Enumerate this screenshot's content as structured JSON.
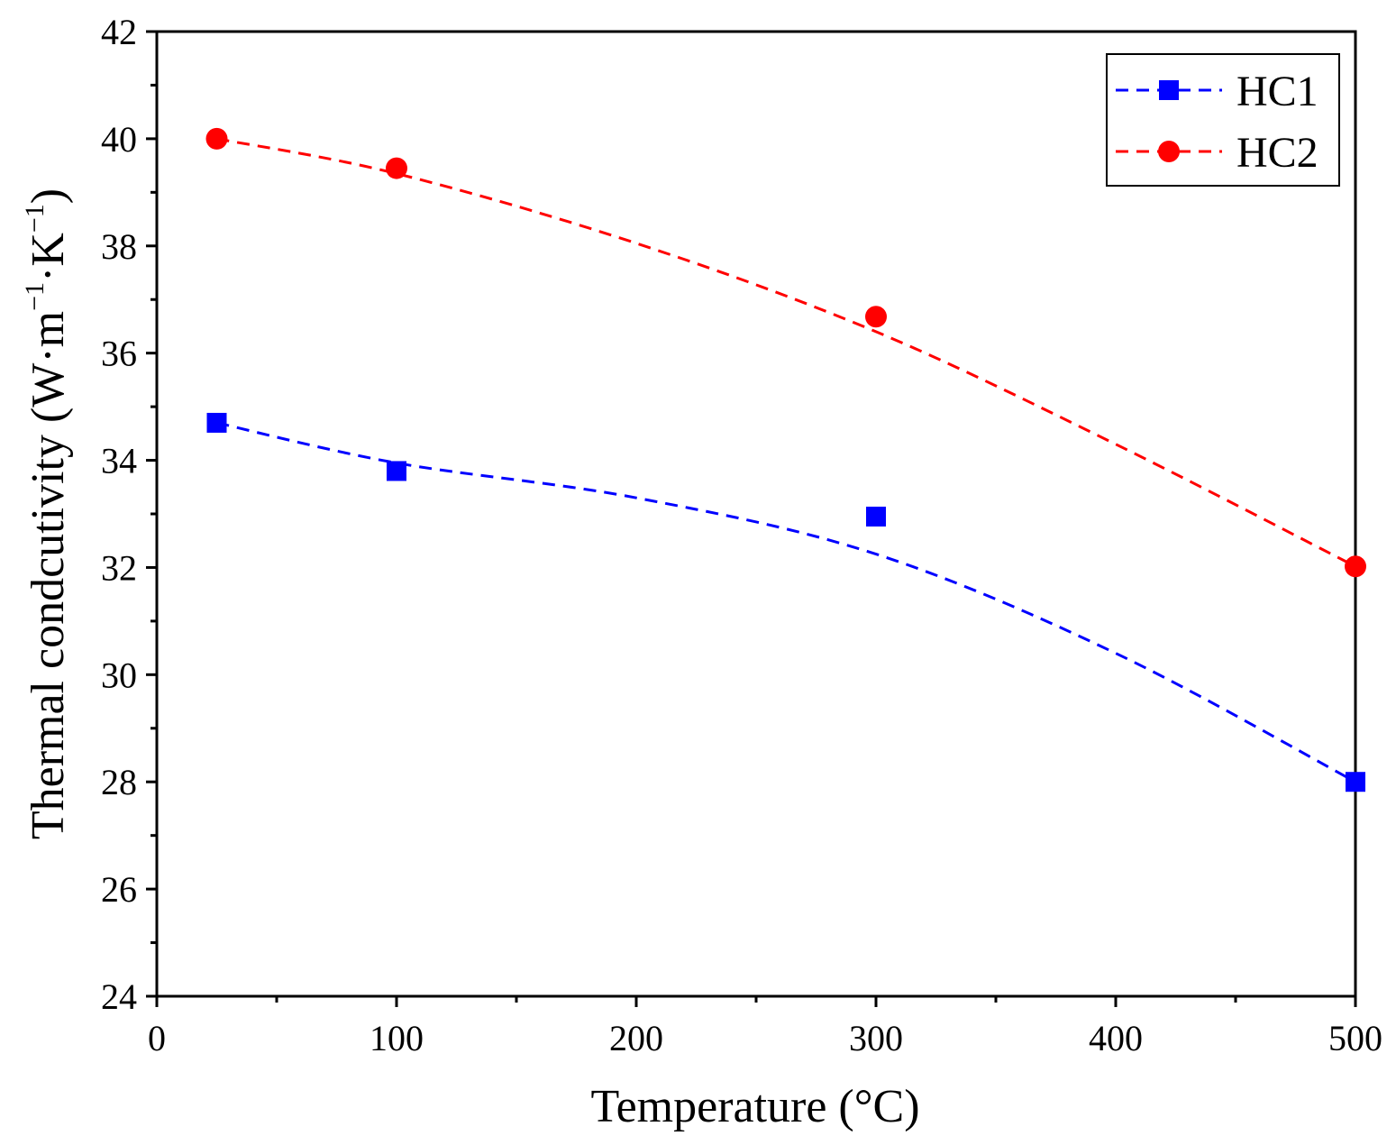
{
  "chart_data": {
    "type": "line",
    "title": "",
    "xlabel": "Temperature (°C)",
    "ylabel_parts": [
      "Thermal condcutivity (W·m",
      "−1",
      "·K",
      "−1",
      ")"
    ],
    "xlim": [
      0,
      500
    ],
    "ylim": [
      24,
      42
    ],
    "x_major_ticks": [
      0,
      100,
      200,
      300,
      400,
      500
    ],
    "x_minor_ticks": [
      50,
      150,
      250,
      350,
      450
    ],
    "y_major_ticks": [
      24,
      26,
      28,
      30,
      32,
      34,
      36,
      38,
      40,
      42
    ],
    "y_minor_ticks": [
      25,
      27,
      29,
      31,
      33,
      35,
      37,
      39,
      41
    ],
    "x_tick_labels": [
      "0",
      "100",
      "200",
      "300",
      "400",
      "500"
    ],
    "y_tick_labels": [
      "24",
      "26",
      "28",
      "30",
      "32",
      "34",
      "36",
      "38",
      "40",
      "42"
    ],
    "grid": false,
    "legend_position": "top-right",
    "series": [
      {
        "name": "HC1",
        "color": "#0000ff",
        "marker": "square",
        "line_style": "dashed",
        "x": [
          25,
          100,
          300,
          500
        ],
        "y": [
          34.7,
          33.8,
          32.95,
          28.0
        ],
        "fit": {
          "x": [
            25,
            100,
            200,
            300,
            400,
            500
          ],
          "y": [
            34.7,
            33.95,
            33.3,
            32.25,
            30.4,
            28.0
          ]
        }
      },
      {
        "name": "HC2",
        "color": "#ff0000",
        "marker": "circle",
        "line_style": "dashed",
        "x": [
          25,
          100,
          300,
          500
        ],
        "y": [
          40.0,
          39.45,
          36.68,
          32.02
        ],
        "fit": {
          "x": [
            25,
            100,
            200,
            300,
            400,
            500
          ],
          "y": [
            40.0,
            39.35,
            38.05,
            36.4,
            34.3,
            32.02
          ]
        }
      }
    ]
  }
}
